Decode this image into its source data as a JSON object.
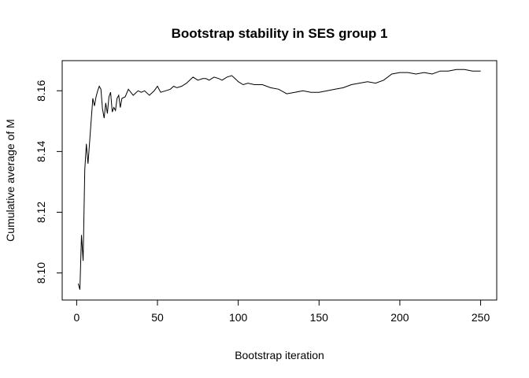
{
  "chart_data": {
    "type": "line",
    "title": "Bootstrap stability in SES group 1",
    "xlabel": "Bootstrap iteration",
    "ylabel": "Cumulative average of M",
    "xlim": [
      1,
      250
    ],
    "ylim": [
      8.094,
      8.167
    ],
    "x_ticks": [
      0,
      50,
      100,
      150,
      200,
      250
    ],
    "x_tick_labels": [
      "0",
      "50",
      "100",
      "150",
      "200",
      "250"
    ],
    "y_ticks": [
      8.1,
      8.12,
      8.14,
      8.16
    ],
    "y_tick_labels": [
      "8.10",
      "8.12",
      "8.14",
      "8.16"
    ],
    "grid": false,
    "series": [
      {
        "x": [
          1,
          2,
          3,
          4,
          5,
          6,
          7,
          8,
          9,
          10,
          11,
          12,
          13,
          14,
          15,
          16,
          17,
          18,
          19,
          20,
          21,
          22,
          23,
          24,
          25,
          26,
          27,
          28,
          30,
          32,
          35,
          38,
          40,
          42,
          45,
          48,
          50,
          52,
          55,
          58,
          60,
          62,
          65,
          68,
          70,
          72,
          75,
          78,
          80,
          82,
          85,
          88,
          90,
          93,
          96,
          98,
          100,
          103,
          106,
          110,
          115,
          120,
          125,
          130,
          135,
          140,
          145,
          150,
          155,
          160,
          165,
          170,
          175,
          180,
          185,
          190,
          195,
          200,
          205,
          210,
          215,
          220,
          225,
          230,
          235,
          240,
          245,
          250
        ],
        "values": [
          8.0965,
          8.0945,
          8.1125,
          8.104,
          8.134,
          8.1425,
          8.136,
          8.143,
          8.1505,
          8.1575,
          8.155,
          8.158,
          8.16,
          8.1615,
          8.1605,
          8.154,
          8.151,
          8.156,
          8.1525,
          8.158,
          8.1595,
          8.153,
          8.1545,
          8.1535,
          8.1575,
          8.1585,
          8.1545,
          8.1575,
          8.158,
          8.1605,
          8.1585,
          8.16,
          8.1595,
          8.16,
          8.1585,
          8.16,
          8.1615,
          8.1595,
          8.16,
          8.1605,
          8.1615,
          8.161,
          8.1615,
          8.1625,
          8.1635,
          8.1645,
          8.1635,
          8.164,
          8.164,
          8.1635,
          8.1645,
          8.164,
          8.1635,
          8.1645,
          8.165,
          8.164,
          8.163,
          8.162,
          8.1625,
          8.162,
          8.162,
          8.161,
          8.1605,
          8.159,
          8.1595,
          8.16,
          8.1595,
          8.1595,
          8.16,
          8.1605,
          8.161,
          8.162,
          8.1625,
          8.163,
          8.1625,
          8.1635,
          8.1655,
          8.166,
          8.166,
          8.1655,
          8.166,
          8.1655,
          8.1665,
          8.1665,
          8.167,
          8.167,
          8.1665,
          8.1665
        ]
      }
    ]
  }
}
